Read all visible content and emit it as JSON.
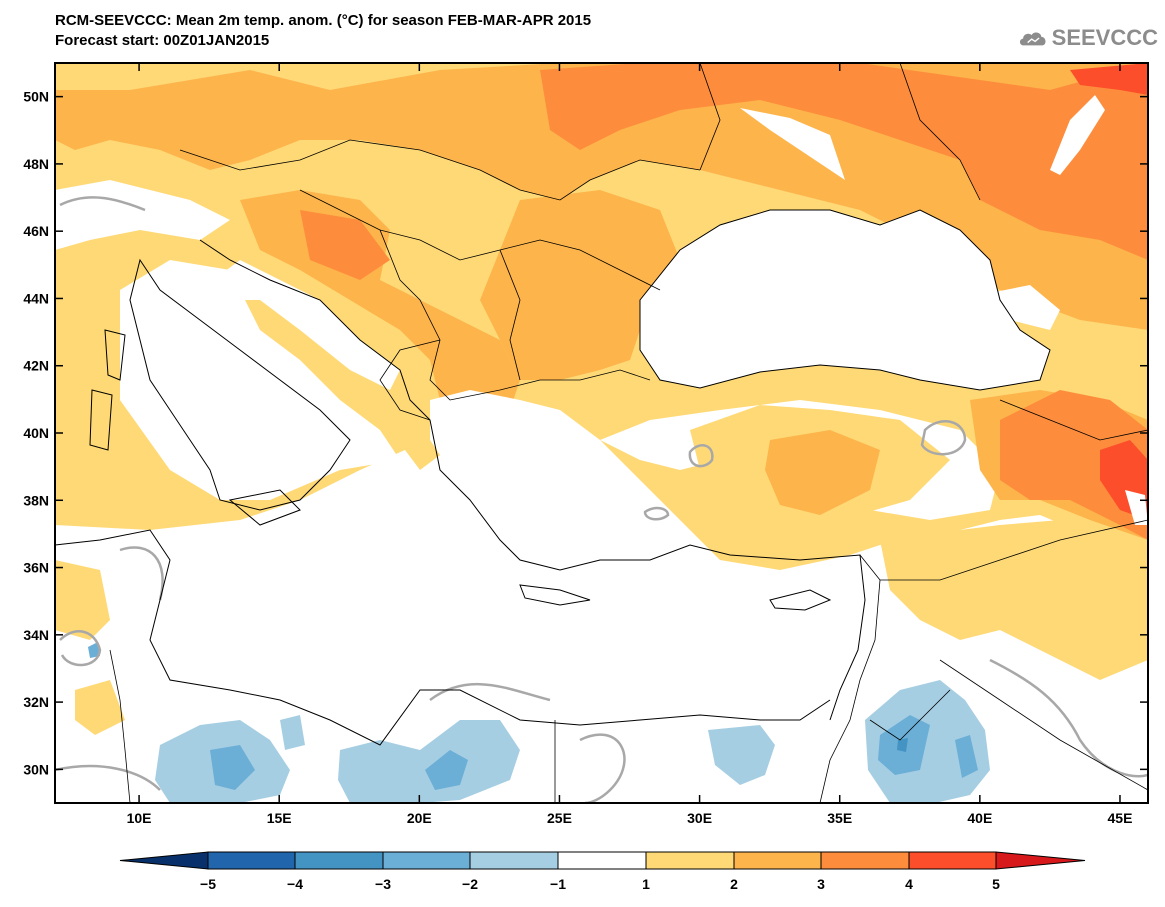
{
  "header": {
    "title_line1": "RCM-SEEVCCC: Mean 2m temp. anom. (°C) for season FEB-MAR-APR 2015",
    "title_line2": "Forecast start: 00Z01JAN2015"
  },
  "logo": {
    "text": "SEEVCCC",
    "icon": "cloud-icon"
  },
  "map": {
    "lon_range": [
      7,
      46
    ],
    "lat_range": [
      29,
      51
    ],
    "lon_ticks": [
      "10E",
      "15E",
      "20E",
      "25E",
      "30E",
      "35E",
      "40E",
      "45E"
    ],
    "lat_ticks": [
      "30N",
      "32N",
      "34N",
      "36N",
      "38N",
      "40N",
      "42N",
      "44N",
      "46N",
      "48N",
      "50N"
    ],
    "sea_color": "#ffffff",
    "border_color": "#000000",
    "zero_contour_color": "#a8a8a8"
  },
  "colorbar": {
    "labels": [
      "-5",
      "-4",
      "-3",
      "-2",
      "-1",
      "1",
      "2",
      "3",
      "4",
      "5"
    ],
    "colors": [
      "#08306b",
      "#2166ac",
      "#4393c3",
      "#6baed6",
      "#a6cee3",
      "#ffffff",
      "#fed976",
      "#fdb44b",
      "#fd8d3c",
      "#fc4e2a",
      "#d7191c"
    ]
  }
}
